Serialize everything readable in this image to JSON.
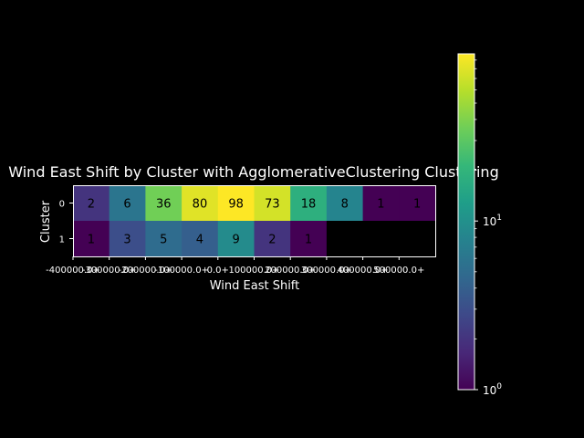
{
  "chart_data": {
    "type": "heatmap",
    "title": "Wind East Shift by Cluster with AgglomerativeClustering Clustering",
    "xlabel": "Wind East Shift",
    "ylabel": "Cluster",
    "x_tick_labels": [
      "-400000.0+",
      "-300000.0+",
      "-200000.0+",
      "-100000.0+",
      "0.0+",
      "100000.0+",
      "200000.0+",
      "300000.0+",
      "400000.0+",
      "500000.0+"
    ],
    "x_tick_labels_display": [
      "-400000.0+",
      "-300000.0+",
      "-200000.0+",
      "-100000.0+",
      "0.0+",
      "100000.0+",
      "200000.0+",
      "300000.0+",
      "400000.0+",
      "500000.0+"
    ],
    "y_tick_labels": [
      "0",
      "1"
    ],
    "values": [
      [
        2,
        6,
        36,
        80,
        98,
        73,
        18,
        8,
        1,
        1
      ],
      [
        1,
        3,
        5,
        4,
        9,
        2,
        1,
        null,
        null,
        null
      ]
    ],
    "color_scale": "log",
    "colormap": "viridis",
    "color_range": [
      1,
      98
    ],
    "colorbar_ticks": [
      {
        "value": 1,
        "base": "10",
        "exp": "0"
      },
      {
        "value": 10,
        "base": "10",
        "exp": "1"
      }
    ],
    "background": "#000000",
    "missing_color": "#000000"
  }
}
